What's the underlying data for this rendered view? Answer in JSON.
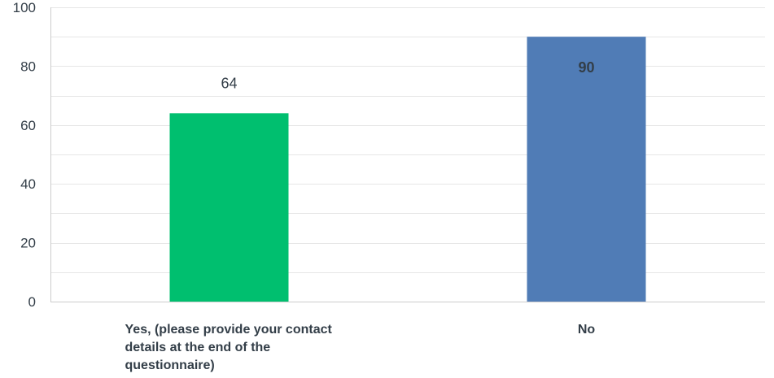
{
  "chart_data": {
    "type": "bar",
    "title": "",
    "xlabel": "",
    "ylabel": "",
    "categories": [
      "Yes, (please provide your contact details at the end of the questionnaire)",
      "No"
    ],
    "values": [
      64,
      90
    ],
    "data_labels": [
      "64",
      "90"
    ],
    "ylim": [
      0,
      100
    ],
    "yticks": [
      0,
      20,
      40,
      60,
      80,
      100
    ],
    "ytick_labels": [
      "0",
      "20",
      "40",
      "60",
      "80",
      "100"
    ],
    "grid": true,
    "colors": [
      "#00bf6f",
      "#507cb6"
    ],
    "grid_color": "#e6e6e6",
    "axis_color": "#cccccc"
  }
}
